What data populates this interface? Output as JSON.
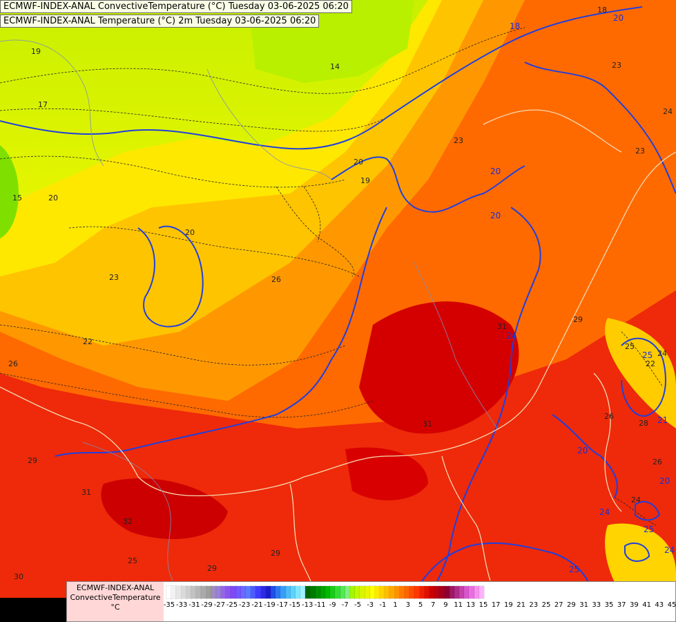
{
  "titles": {
    "line1": "ECMWF-INDEX-ANAL ConvectiveTemperature (°C) Tuesday 03-06-2025 06:20",
    "line2": "ECMWF-INDEX-ANAL Temperature (°C) 2m Tuesday 03-06-2025 06:20"
  },
  "legend": {
    "title_lines": [
      "ECMWF-INDEX-ANAL",
      "ConvectiveTemperature",
      "°C"
    ],
    "ticks": [
      "-35",
      "-33",
      "-31",
      "-29",
      "-27",
      "-25",
      "-23",
      "-21",
      "-19",
      "-17",
      "-15",
      "-13",
      "-11",
      "-9",
      "-7",
      "-5",
      "-3",
      "-1",
      "1",
      "3",
      "5",
      "7",
      "9",
      "11",
      "13",
      "15",
      "17",
      "19",
      "21",
      "23",
      "25",
      "27",
      "29",
      "31",
      "33",
      "35",
      "37",
      "39",
      "41",
      "43",
      "45"
    ],
    "colors": [
      "#ffffff",
      "#f2f2f2",
      "#e6e6e6",
      "#dadada",
      "#cecece",
      "#c2c2c2",
      "#b6b6b6",
      "#aaaaaa",
      "#9e9e9e",
      "#a08cc0",
      "#9a7fd8",
      "#9466e6",
      "#8a55f0",
      "#7f4af5",
      "#7358ff",
      "#6a6aff",
      "#5c7bff",
      "#4d5cff",
      "#3d3dff",
      "#2c2ce6",
      "#1c1ccc",
      "#1f4fe6",
      "#2c78f0",
      "#3a9cf5",
      "#4bbcf8",
      "#5fd2fb",
      "#7fe6ff",
      "#9ff0ff",
      "#006600",
      "#007a00",
      "#008f00",
      "#00a300",
      "#00b800",
      "#1acc1a",
      "#33dd33",
      "#55e655",
      "#7ff07f",
      "#a6f500",
      "#c2f500",
      "#d9f500",
      "#ecf500",
      "#ffff00",
      "#ffe800",
      "#ffd200",
      "#ffbc00",
      "#ffa600",
      "#ff9000",
      "#ff7a00",
      "#ff6400",
      "#ff4e00",
      "#ff3800",
      "#f02000",
      "#e01000",
      "#cc0000",
      "#b80010",
      "#a30020",
      "#8f0030",
      "#9a1a66",
      "#b02a88",
      "#c440aa",
      "#d856cc",
      "#ea6ee0",
      "#f590ee",
      "#ffb0ff"
    ]
  },
  "isolines": {
    "convective": [
      "19",
      "17",
      "15",
      "20",
      "23",
      "22",
      "26",
      "26",
      "23",
      "20",
      "19",
      "23",
      "23",
      "24",
      "29",
      "31",
      "31",
      "29",
      "29",
      "31",
      "32",
      "25",
      "29",
      "30",
      "28",
      "26",
      "24",
      "25",
      "20",
      "26",
      "24",
      "22",
      "14",
      "18"
    ],
    "temperature2m": [
      "20",
      "20",
      "20",
      "24",
      "18",
      "20",
      "25",
      "24",
      "20",
      "25",
      "21",
      "24",
      "25"
    ]
  }
}
